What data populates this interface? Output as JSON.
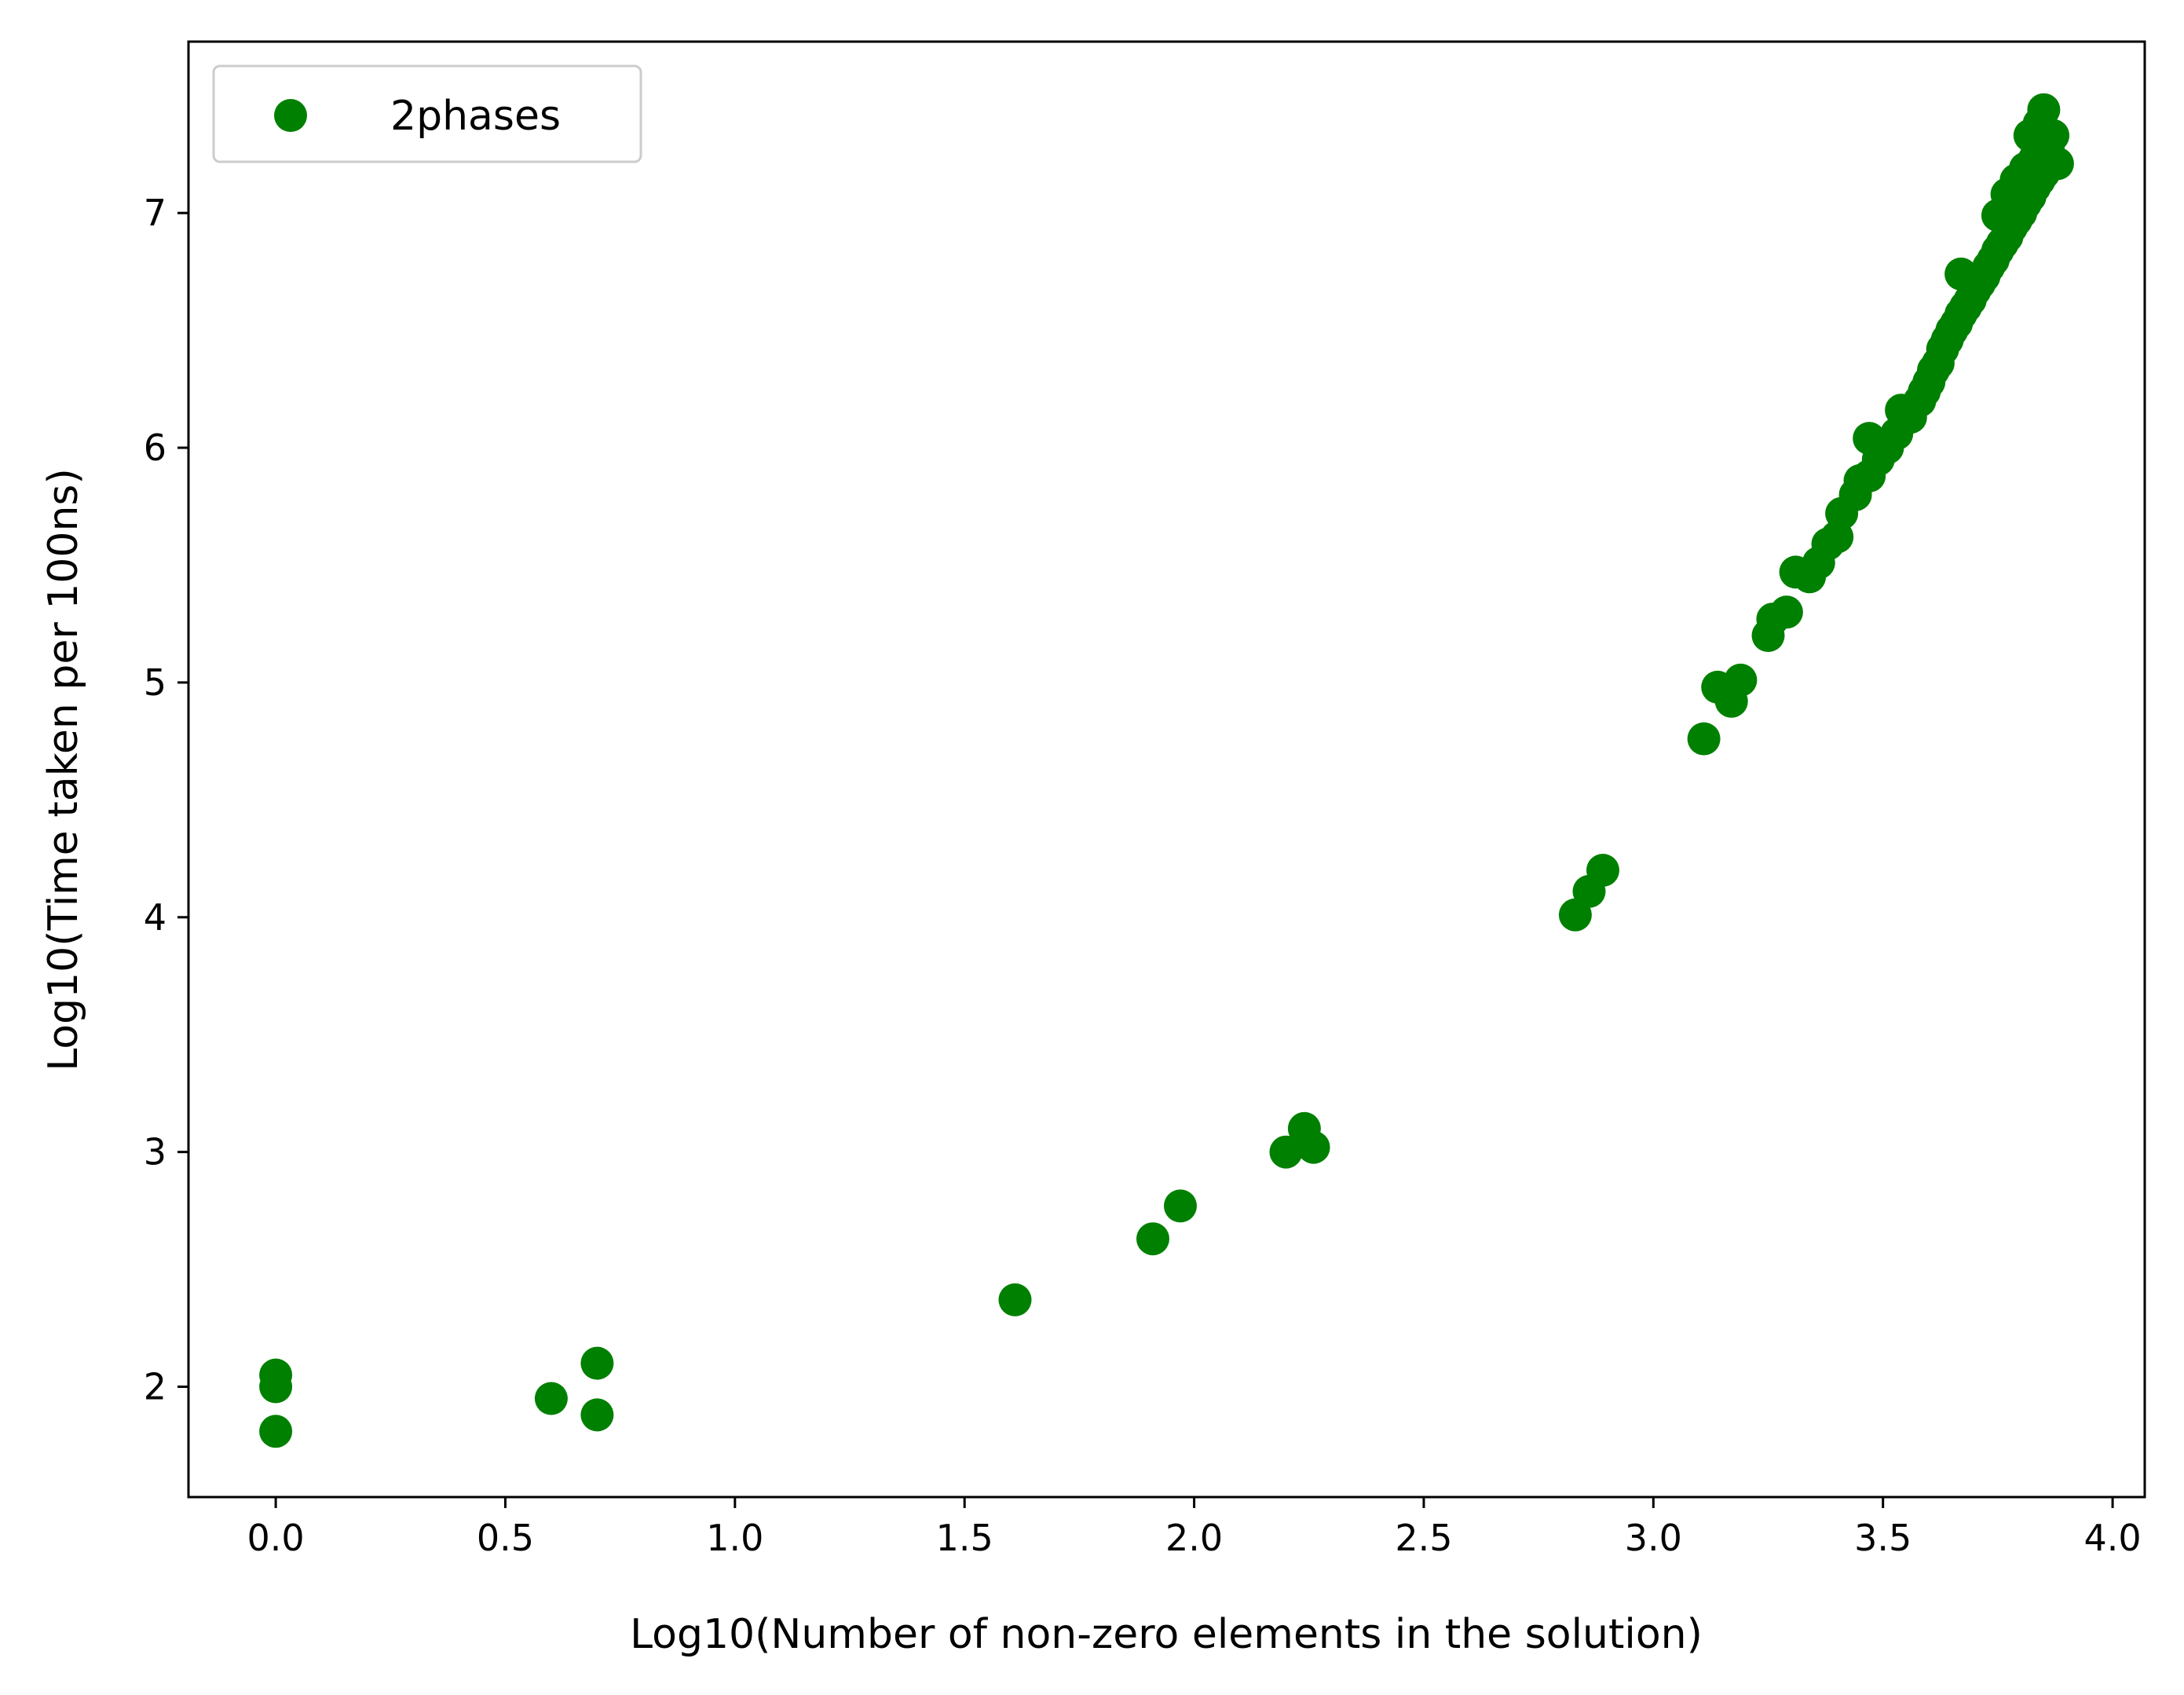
{
  "chart_data": {
    "type": "scatter",
    "title": "",
    "xlabel": "Log10(Number of non-zero elements in the solution)",
    "ylabel": "Log10(Time taken per 100ns)",
    "xlim": [
      -0.19,
      4.07
    ],
    "ylim": [
      1.53,
      7.73
    ],
    "xticks": [
      "0.0",
      "0.5",
      "1.0",
      "1.5",
      "2.0",
      "2.5",
      "3.0",
      "3.5",
      "4.0"
    ],
    "yticks": [
      "2",
      "3",
      "4",
      "5",
      "6",
      "7"
    ],
    "grid": false,
    "legend_position": "top-left",
    "series": [
      {
        "name": "2phases",
        "color": "#008000",
        "marker": "circle",
        "points": [
          [
            0.0,
            1.81
          ],
          [
            0.0,
            2.0
          ],
          [
            0.0,
            2.05
          ],
          [
            0.6,
            1.95
          ],
          [
            0.7,
            1.88
          ],
          [
            0.7,
            2.1
          ],
          [
            1.61,
            2.37
          ],
          [
            1.91,
            2.63
          ],
          [
            1.97,
            2.77
          ],
          [
            2.2,
            3.0
          ],
          [
            2.24,
            3.1
          ],
          [
            2.26,
            3.02
          ],
          [
            2.83,
            4.01
          ],
          [
            2.86,
            4.11
          ],
          [
            2.89,
            4.2
          ],
          [
            3.11,
            4.76
          ],
          [
            3.14,
            4.98
          ],
          [
            3.17,
            4.92
          ],
          [
            3.19,
            5.01
          ],
          [
            3.25,
            5.2
          ],
          [
            3.26,
            5.27
          ],
          [
            3.29,
            5.3
          ],
          [
            3.31,
            5.47
          ],
          [
            3.34,
            5.45
          ],
          [
            3.36,
            5.51
          ],
          [
            3.38,
            5.59
          ],
          [
            3.4,
            5.62
          ],
          [
            3.41,
            5.72
          ],
          [
            3.44,
            5.8
          ],
          [
            3.45,
            5.86
          ],
          [
            3.47,
            6.04
          ],
          [
            3.47,
            5.88
          ],
          [
            3.49,
            5.95
          ],
          [
            3.51,
            6.0
          ],
          [
            3.53,
            6.06
          ],
          [
            3.54,
            6.16
          ],
          [
            3.56,
            6.13
          ],
          [
            3.58,
            6.2
          ],
          [
            3.59,
            6.24
          ],
          [
            3.6,
            6.28
          ],
          [
            3.61,
            6.33
          ],
          [
            3.62,
            6.36
          ],
          [
            3.63,
            6.42
          ],
          [
            3.64,
            6.46
          ],
          [
            3.65,
            6.5
          ],
          [
            3.66,
            6.53
          ],
          [
            3.67,
            6.57
          ],
          [
            3.67,
            6.74
          ],
          [
            3.68,
            6.6
          ],
          [
            3.69,
            6.63
          ],
          [
            3.7,
            6.67
          ],
          [
            3.71,
            6.7
          ],
          [
            3.72,
            6.73
          ],
          [
            3.73,
            6.77
          ],
          [
            3.74,
            6.8
          ],
          [
            3.75,
            6.84
          ],
          [
            3.75,
            6.99
          ],
          [
            3.76,
            6.87
          ],
          [
            3.77,
            6.9
          ],
          [
            3.77,
            7.08
          ],
          [
            3.78,
            6.94
          ],
          [
            3.79,
            6.97
          ],
          [
            3.79,
            7.14
          ],
          [
            3.8,
            7.0
          ],
          [
            3.81,
            7.04
          ],
          [
            3.81,
            7.19
          ],
          [
            3.82,
            7.07
          ],
          [
            3.82,
            7.33
          ],
          [
            3.83,
            7.11
          ],
          [
            3.83,
            7.23
          ],
          [
            3.84,
            7.14
          ],
          [
            3.84,
            7.38
          ],
          [
            3.85,
            7.17
          ],
          [
            3.85,
            7.44
          ],
          [
            3.86,
            7.2
          ],
          [
            3.86,
            7.27
          ],
          [
            3.87,
            7.22
          ],
          [
            3.87,
            7.33
          ],
          [
            3.88,
            7.21
          ]
        ]
      }
    ]
  }
}
